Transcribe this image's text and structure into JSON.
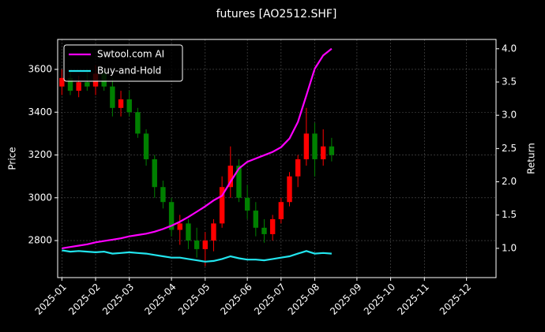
{
  "chart_data": {
    "type": "candlestick",
    "title": "futures [AO2512.SHF]",
    "ylabel": "Price",
    "y2label": "Return",
    "categories": [
      "2025-01",
      null,
      null,
      null,
      "2025-02",
      null,
      null,
      null,
      "2025-03",
      null,
      null,
      null,
      null,
      "2025-04",
      null,
      null,
      null,
      "2025-05",
      null,
      null,
      null,
      null,
      "2025-06",
      null,
      null,
      null,
      "2025-07",
      null,
      null,
      null,
      "2025-08",
      null,
      null,
      null,
      null,
      "2025-09",
      null,
      null,
      null,
      "2025-10",
      null,
      null,
      null,
      "2025-11",
      null,
      null,
      null,
      null,
      "2025-12",
      null,
      null,
      null
    ],
    "candles": {
      "open": [
        3520,
        3560,
        3500,
        3540,
        3520,
        3580,
        3520,
        3420,
        3460,
        3400,
        3300,
        3180,
        3050,
        2980,
        2850,
        2880,
        2800,
        2760,
        2800,
        2880,
        3050,
        3150,
        3000,
        2940,
        2860,
        2830,
        2900,
        2980,
        3100,
        3180,
        3300,
        3180,
        3240,
        null,
        null,
        null,
        null,
        null,
        null,
        null,
        null,
        null,
        null,
        null,
        null,
        null,
        null,
        null,
        null,
        null,
        null,
        null
      ],
      "high": [
        3600,
        3590,
        3570,
        3600,
        3620,
        3600,
        3560,
        3500,
        3500,
        3420,
        3320,
        3200,
        3080,
        3000,
        2920,
        2900,
        2860,
        2840,
        2900,
        3100,
        3240,
        3180,
        3060,
        2980,
        2900,
        2920,
        3000,
        3120,
        3200,
        3420,
        3350,
        3320,
        3280,
        null,
        null,
        null,
        null,
        null,
        null,
        null,
        null,
        null,
        null,
        null,
        null,
        null,
        null,
        null,
        null,
        null,
        null,
        null
      ],
      "low": [
        3480,
        3480,
        3470,
        3500,
        3480,
        3500,
        3380,
        3380,
        3380,
        3280,
        3150,
        3000,
        2950,
        2820,
        2780,
        2760,
        2720,
        2680,
        2750,
        2860,
        3000,
        2980,
        2900,
        2820,
        2790,
        2800,
        2880,
        2960,
        3050,
        3150,
        3100,
        3150,
        3170,
        null,
        null,
        null,
        null,
        null,
        null,
        null,
        null,
        null,
        null,
        null,
        null,
        null,
        null,
        null,
        null,
        null,
        null,
        null
      ],
      "close": [
        3560,
        3500,
        3540,
        3520,
        3580,
        3520,
        3420,
        3460,
        3400,
        3300,
        3180,
        3050,
        2980,
        2850,
        2880,
        2800,
        2760,
        2800,
        2880,
        3050,
        3150,
        3000,
        2940,
        2860,
        2830,
        2900,
        2980,
        3100,
        3180,
        3300,
        3180,
        3240,
        3200,
        null,
        null,
        null,
        null,
        null,
        null,
        null,
        null,
        null,
        null,
        null,
        null,
        null,
        null,
        null,
        null,
        null,
        null,
        null
      ]
    },
    "up_color": "#ff0000",
    "down_color": "#008000",
    "series": [
      {
        "name": "Swtool.com AI",
        "color": "#ff00ff",
        "axis": "y2",
        "values": [
          1.0,
          1.02,
          1.04,
          1.06,
          1.09,
          1.11,
          1.13,
          1.15,
          1.18,
          1.2,
          1.22,
          1.25,
          1.29,
          1.34,
          1.4,
          1.47,
          1.55,
          1.63,
          1.72,
          1.79,
          2.0,
          2.2,
          2.3,
          2.35,
          2.4,
          2.45,
          2.52,
          2.65,
          2.9,
          3.3,
          3.7,
          3.9,
          4.0,
          null,
          null,
          null,
          null,
          null,
          null,
          null,
          null,
          null,
          null,
          null,
          null,
          null,
          null,
          null,
          null,
          null,
          null,
          null
        ]
      },
      {
        "name": "Buy-and-Hold",
        "color": "#22e5ee",
        "axis": "y2",
        "values": [
          0.97,
          0.95,
          0.96,
          0.95,
          0.94,
          0.95,
          0.92,
          0.93,
          0.94,
          0.93,
          0.92,
          0.9,
          0.88,
          0.86,
          0.86,
          0.84,
          0.82,
          0.8,
          0.81,
          0.84,
          0.88,
          0.85,
          0.83,
          0.83,
          0.82,
          0.84,
          0.86,
          0.88,
          0.92,
          0.96,
          0.92,
          0.93,
          0.92,
          null,
          null,
          null,
          null,
          null,
          null,
          null,
          null,
          null,
          null,
          null,
          null,
          null,
          null,
          null,
          null,
          null,
          null,
          null
        ]
      }
    ],
    "ylim": [
      2627,
      3740
    ],
    "yticks": [
      2800,
      3000,
      3200,
      3400,
      3600
    ],
    "y2lim": [
      0.56,
      4.14
    ],
    "y2ticks": [
      {
        "value": 1,
        "label": "1.0"
      },
      1.5,
      {
        "value": 2,
        "label": "2.0"
      },
      2.5,
      {
        "value": 3,
        "label": "3.0"
      },
      3.5,
      {
        "value": 4,
        "label": "4.0"
      }
    ],
    "grid": true,
    "legend": "upper left"
  }
}
